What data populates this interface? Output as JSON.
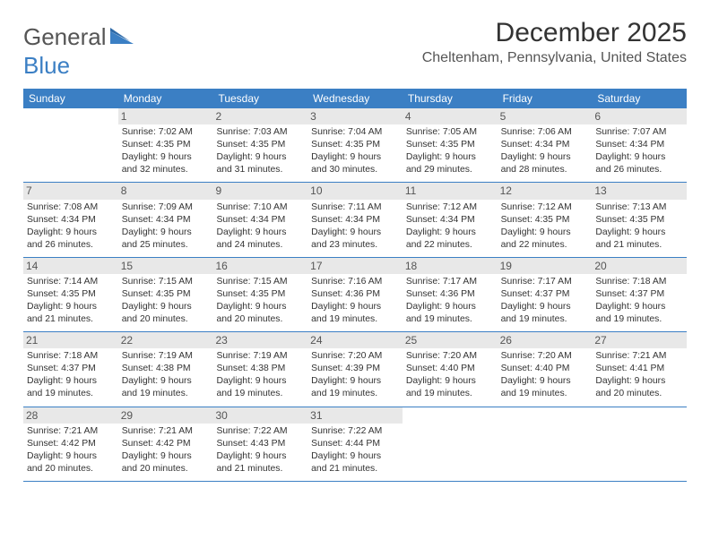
{
  "logo": {
    "word1": "General",
    "word2": "Blue",
    "icon_color": "#3b7fc4"
  },
  "title": "December 2025",
  "location": "Cheltenham, Pennsylvania, United States",
  "colors": {
    "header_bg": "#3b7fc4",
    "daynum_bg": "#e8e8e8",
    "text": "#333333"
  },
  "weekdays": [
    "Sunday",
    "Monday",
    "Tuesday",
    "Wednesday",
    "Thursday",
    "Friday",
    "Saturday"
  ],
  "weeks": [
    [
      {
        "num": "",
        "sunrise": "",
        "sunset": "",
        "daylight": ""
      },
      {
        "num": "1",
        "sunrise": "Sunrise: 7:02 AM",
        "sunset": "Sunset: 4:35 PM",
        "daylight": "Daylight: 9 hours and 32 minutes."
      },
      {
        "num": "2",
        "sunrise": "Sunrise: 7:03 AM",
        "sunset": "Sunset: 4:35 PM",
        "daylight": "Daylight: 9 hours and 31 minutes."
      },
      {
        "num": "3",
        "sunrise": "Sunrise: 7:04 AM",
        "sunset": "Sunset: 4:35 PM",
        "daylight": "Daylight: 9 hours and 30 minutes."
      },
      {
        "num": "4",
        "sunrise": "Sunrise: 7:05 AM",
        "sunset": "Sunset: 4:35 PM",
        "daylight": "Daylight: 9 hours and 29 minutes."
      },
      {
        "num": "5",
        "sunrise": "Sunrise: 7:06 AM",
        "sunset": "Sunset: 4:34 PM",
        "daylight": "Daylight: 9 hours and 28 minutes."
      },
      {
        "num": "6",
        "sunrise": "Sunrise: 7:07 AM",
        "sunset": "Sunset: 4:34 PM",
        "daylight": "Daylight: 9 hours and 26 minutes."
      }
    ],
    [
      {
        "num": "7",
        "sunrise": "Sunrise: 7:08 AM",
        "sunset": "Sunset: 4:34 PM",
        "daylight": "Daylight: 9 hours and 26 minutes."
      },
      {
        "num": "8",
        "sunrise": "Sunrise: 7:09 AM",
        "sunset": "Sunset: 4:34 PM",
        "daylight": "Daylight: 9 hours and 25 minutes."
      },
      {
        "num": "9",
        "sunrise": "Sunrise: 7:10 AM",
        "sunset": "Sunset: 4:34 PM",
        "daylight": "Daylight: 9 hours and 24 minutes."
      },
      {
        "num": "10",
        "sunrise": "Sunrise: 7:11 AM",
        "sunset": "Sunset: 4:34 PM",
        "daylight": "Daylight: 9 hours and 23 minutes."
      },
      {
        "num": "11",
        "sunrise": "Sunrise: 7:12 AM",
        "sunset": "Sunset: 4:34 PM",
        "daylight": "Daylight: 9 hours and 22 minutes."
      },
      {
        "num": "12",
        "sunrise": "Sunrise: 7:12 AM",
        "sunset": "Sunset: 4:35 PM",
        "daylight": "Daylight: 9 hours and 22 minutes."
      },
      {
        "num": "13",
        "sunrise": "Sunrise: 7:13 AM",
        "sunset": "Sunset: 4:35 PM",
        "daylight": "Daylight: 9 hours and 21 minutes."
      }
    ],
    [
      {
        "num": "14",
        "sunrise": "Sunrise: 7:14 AM",
        "sunset": "Sunset: 4:35 PM",
        "daylight": "Daylight: 9 hours and 21 minutes."
      },
      {
        "num": "15",
        "sunrise": "Sunrise: 7:15 AM",
        "sunset": "Sunset: 4:35 PM",
        "daylight": "Daylight: 9 hours and 20 minutes."
      },
      {
        "num": "16",
        "sunrise": "Sunrise: 7:15 AM",
        "sunset": "Sunset: 4:35 PM",
        "daylight": "Daylight: 9 hours and 20 minutes."
      },
      {
        "num": "17",
        "sunrise": "Sunrise: 7:16 AM",
        "sunset": "Sunset: 4:36 PM",
        "daylight": "Daylight: 9 hours and 19 minutes."
      },
      {
        "num": "18",
        "sunrise": "Sunrise: 7:17 AM",
        "sunset": "Sunset: 4:36 PM",
        "daylight": "Daylight: 9 hours and 19 minutes."
      },
      {
        "num": "19",
        "sunrise": "Sunrise: 7:17 AM",
        "sunset": "Sunset: 4:37 PM",
        "daylight": "Daylight: 9 hours and 19 minutes."
      },
      {
        "num": "20",
        "sunrise": "Sunrise: 7:18 AM",
        "sunset": "Sunset: 4:37 PM",
        "daylight": "Daylight: 9 hours and 19 minutes."
      }
    ],
    [
      {
        "num": "21",
        "sunrise": "Sunrise: 7:18 AM",
        "sunset": "Sunset: 4:37 PM",
        "daylight": "Daylight: 9 hours and 19 minutes."
      },
      {
        "num": "22",
        "sunrise": "Sunrise: 7:19 AM",
        "sunset": "Sunset: 4:38 PM",
        "daylight": "Daylight: 9 hours and 19 minutes."
      },
      {
        "num": "23",
        "sunrise": "Sunrise: 7:19 AM",
        "sunset": "Sunset: 4:38 PM",
        "daylight": "Daylight: 9 hours and 19 minutes."
      },
      {
        "num": "24",
        "sunrise": "Sunrise: 7:20 AM",
        "sunset": "Sunset: 4:39 PM",
        "daylight": "Daylight: 9 hours and 19 minutes."
      },
      {
        "num": "25",
        "sunrise": "Sunrise: 7:20 AM",
        "sunset": "Sunset: 4:40 PM",
        "daylight": "Daylight: 9 hours and 19 minutes."
      },
      {
        "num": "26",
        "sunrise": "Sunrise: 7:20 AM",
        "sunset": "Sunset: 4:40 PM",
        "daylight": "Daylight: 9 hours and 19 minutes."
      },
      {
        "num": "27",
        "sunrise": "Sunrise: 7:21 AM",
        "sunset": "Sunset: 4:41 PM",
        "daylight": "Daylight: 9 hours and 20 minutes."
      }
    ],
    [
      {
        "num": "28",
        "sunrise": "Sunrise: 7:21 AM",
        "sunset": "Sunset: 4:42 PM",
        "daylight": "Daylight: 9 hours and 20 minutes."
      },
      {
        "num": "29",
        "sunrise": "Sunrise: 7:21 AM",
        "sunset": "Sunset: 4:42 PM",
        "daylight": "Daylight: 9 hours and 20 minutes."
      },
      {
        "num": "30",
        "sunrise": "Sunrise: 7:22 AM",
        "sunset": "Sunset: 4:43 PM",
        "daylight": "Daylight: 9 hours and 21 minutes."
      },
      {
        "num": "31",
        "sunrise": "Sunrise: 7:22 AM",
        "sunset": "Sunset: 4:44 PM",
        "daylight": "Daylight: 9 hours and 21 minutes."
      },
      {
        "num": "",
        "sunrise": "",
        "sunset": "",
        "daylight": ""
      },
      {
        "num": "",
        "sunrise": "",
        "sunset": "",
        "daylight": ""
      },
      {
        "num": "",
        "sunrise": "",
        "sunset": "",
        "daylight": ""
      }
    ]
  ]
}
